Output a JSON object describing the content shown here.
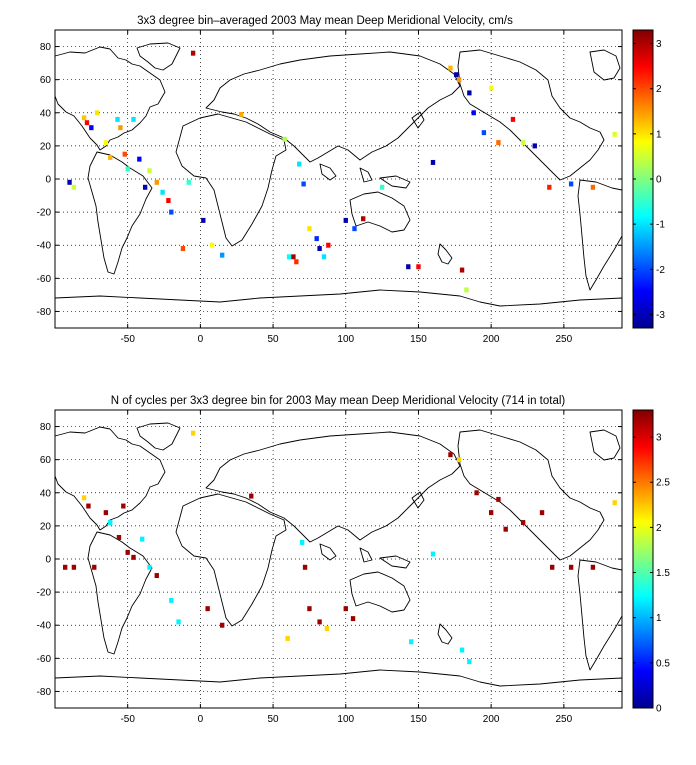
{
  "chart_data": [
    {
      "type": "heatmap",
      "title": "3x3 degree bin–averaged 2003 May mean Deep Meridional Velocity, cm/s",
      "xlim": [
        -100,
        290
      ],
      "ylim": [
        -90,
        90
      ],
      "xticks": [
        -50,
        0,
        50,
        100,
        150,
        200,
        250
      ],
      "yticks": [
        80,
        60,
        40,
        20,
        0,
        -20,
        -40,
        -60,
        -80
      ],
      "grid": "dotted",
      "colormap": "jet",
      "colorbar": {
        "clim": [
          -3.3,
          3.3
        ],
        "ticks": [
          3,
          2,
          1,
          0,
          -1,
          -2,
          -3
        ]
      },
      "points": [
        {
          "x": -90,
          "y": -2,
          "v": -3
        },
        {
          "x": -87,
          "y": -5,
          "v": 0.5
        },
        {
          "x": -80,
          "y": 37,
          "v": 1.2
        },
        {
          "x": -78,
          "y": 34,
          "v": 2.5
        },
        {
          "x": -75,
          "y": 31,
          "v": -2.5
        },
        {
          "x": -71,
          "y": 40,
          "v": 1
        },
        {
          "x": -65,
          "y": 22,
          "v": 0.8
        },
        {
          "x": -62,
          "y": 13,
          "v": 1.3
        },
        {
          "x": -57,
          "y": 36,
          "v": -1
        },
        {
          "x": -55,
          "y": 31,
          "v": 1.5
        },
        {
          "x": -52,
          "y": 15,
          "v": 2
        },
        {
          "x": -50,
          "y": 6,
          "v": -0.5
        },
        {
          "x": -46,
          "y": 36,
          "v": -1
        },
        {
          "x": -42,
          "y": 12,
          "v": -2.5
        },
        {
          "x": -38,
          "y": -5,
          "v": -3
        },
        {
          "x": -35,
          "y": 5,
          "v": 0.5
        },
        {
          "x": -30,
          "y": -2,
          "v": 1.5
        },
        {
          "x": -26,
          "y": -8,
          "v": -1
        },
        {
          "x": -22,
          "y": -13,
          "v": 2.5
        },
        {
          "x": -20,
          "y": -20,
          "v": -2
        },
        {
          "x": -12,
          "y": -42,
          "v": 2
        },
        {
          "x": -8,
          "y": -2,
          "v": -0.5
        },
        {
          "x": -5,
          "y": 76,
          "v": 3
        },
        {
          "x": 2,
          "y": -25,
          "v": -3
        },
        {
          "x": 8,
          "y": -40,
          "v": 0.8
        },
        {
          "x": 15,
          "y": -46,
          "v": -1.5
        },
        {
          "x": 28,
          "y": 39,
          "v": 1.4
        },
        {
          "x": 58,
          "y": 24,
          "v": 0.3
        },
        {
          "x": 61,
          "y": -47,
          "v": -0.8
        },
        {
          "x": 64,
          "y": -47,
          "v": 3
        },
        {
          "x": 66,
          "y": -50,
          "v": 2.2
        },
        {
          "x": 68,
          "y": 9,
          "v": -1
        },
        {
          "x": 71,
          "y": -3,
          "v": -2
        },
        {
          "x": 75,
          "y": -30,
          "v": 1
        },
        {
          "x": 80,
          "y": -36,
          "v": -2.2
        },
        {
          "x": 82,
          "y": -42,
          "v": -3
        },
        {
          "x": 85,
          "y": -47,
          "v": -1
        },
        {
          "x": 88,
          "y": -40,
          "v": 2.5
        },
        {
          "x": 100,
          "y": -25,
          "v": -3
        },
        {
          "x": 106,
          "y": -30,
          "v": -2
        },
        {
          "x": 112,
          "y": -24,
          "v": 3
        },
        {
          "x": 125,
          "y": -5,
          "v": -0.5
        },
        {
          "x": 143,
          "y": -53,
          "v": -3
        },
        {
          "x": 150,
          "y": -53,
          "v": 2.5
        },
        {
          "x": 160,
          "y": 10,
          "v": -3
        },
        {
          "x": 172,
          "y": 67,
          "v": 1.3
        },
        {
          "x": 176,
          "y": 63,
          "v": -3
        },
        {
          "x": 178,
          "y": 60,
          "v": 1.5
        },
        {
          "x": 180,
          "y": -55,
          "v": 3
        },
        {
          "x": 183,
          "y": -67,
          "v": 0.4
        },
        {
          "x": 185,
          "y": 52,
          "v": -3
        },
        {
          "x": 188,
          "y": 40,
          "v": -2.5
        },
        {
          "x": 195,
          "y": 28,
          "v": -2
        },
        {
          "x": 200,
          "y": 55,
          "v": 0.8
        },
        {
          "x": 205,
          "y": 22,
          "v": 1.8
        },
        {
          "x": 215,
          "y": 36,
          "v": 2.5
        },
        {
          "x": 222,
          "y": 22,
          "v": 0.5
        },
        {
          "x": 230,
          "y": 20,
          "v": -3
        },
        {
          "x": 240,
          "y": -5,
          "v": 2.3
        },
        {
          "x": 255,
          "y": -3,
          "v": -2
        },
        {
          "x": 270,
          "y": -5,
          "v": 1.8
        },
        {
          "x": 285,
          "y": 27,
          "v": 0.6
        }
      ]
    },
    {
      "type": "heatmap",
      "title": "N of cycles per 3x3 degree bin for 2003 May mean Deep Meridional Velocity (714 in total)",
      "xlim": [
        -100,
        290
      ],
      "ylim": [
        -90,
        90
      ],
      "xticks": [
        -50,
        0,
        50,
        100,
        150,
        200,
        250
      ],
      "yticks": [
        80,
        60,
        40,
        20,
        0,
        -20,
        -40,
        -60,
        -80
      ],
      "grid": "dotted",
      "colormap": "jet",
      "colorbar": {
        "clim": [
          0,
          3.3
        ],
        "ticks": [
          3,
          2.5,
          2,
          1.5,
          1,
          0.5,
          0
        ]
      },
      "points": [
        {
          "x": -93,
          "y": -5,
          "v": 3.2
        },
        {
          "x": -87,
          "y": -5,
          "v": 3.2
        },
        {
          "x": -80,
          "y": 37,
          "v": 2.2
        },
        {
          "x": -77,
          "y": 32,
          "v": 3.2
        },
        {
          "x": -73,
          "y": -5,
          "v": 3.2
        },
        {
          "x": -65,
          "y": 28,
          "v": 3.2
        },
        {
          "x": -62,
          "y": 22,
          "v": 1.2
        },
        {
          "x": -56,
          "y": 13,
          "v": 3.2
        },
        {
          "x": -53,
          "y": 32,
          "v": 3.2
        },
        {
          "x": -50,
          "y": 4,
          "v": 3.2
        },
        {
          "x": -46,
          "y": 1,
          "v": 3.2
        },
        {
          "x": -40,
          "y": 12,
          "v": 1.2
        },
        {
          "x": -35,
          "y": -5,
          "v": 1.2
        },
        {
          "x": -30,
          "y": -10,
          "v": 3.2
        },
        {
          "x": -20,
          "y": -25,
          "v": 1.2
        },
        {
          "x": -15,
          "y": -38,
          "v": 1.2
        },
        {
          "x": -5,
          "y": 76,
          "v": 2.2
        },
        {
          "x": 5,
          "y": -30,
          "v": 3.2
        },
        {
          "x": 15,
          "y": -40,
          "v": 3.2
        },
        {
          "x": 35,
          "y": 38,
          "v": 3.2
        },
        {
          "x": 60,
          "y": -48,
          "v": 2.2
        },
        {
          "x": 70,
          "y": 10,
          "v": 1.2
        },
        {
          "x": 72,
          "y": -5,
          "v": 3.2
        },
        {
          "x": 75,
          "y": -30,
          "v": 3.2
        },
        {
          "x": 82,
          "y": -38,
          "v": 3.2
        },
        {
          "x": 87,
          "y": -42,
          "v": 2.2
        },
        {
          "x": 100,
          "y": -30,
          "v": 3.2
        },
        {
          "x": 105,
          "y": -36,
          "v": 3.2
        },
        {
          "x": 145,
          "y": -50,
          "v": 1.2
        },
        {
          "x": 160,
          "y": 3,
          "v": 1.2
        },
        {
          "x": 172,
          "y": 63,
          "v": 3.2
        },
        {
          "x": 178,
          "y": 60,
          "v": 2.2
        },
        {
          "x": 180,
          "y": -55,
          "v": 1.2
        },
        {
          "x": 185,
          "y": -62,
          "v": 1.2
        },
        {
          "x": 190,
          "y": 40,
          "v": 3.2
        },
        {
          "x": 200,
          "y": 28,
          "v": 3.2
        },
        {
          "x": 205,
          "y": 36,
          "v": 3.2
        },
        {
          "x": 210,
          "y": 18,
          "v": 3.2
        },
        {
          "x": 222,
          "y": 22,
          "v": 3.2
        },
        {
          "x": 235,
          "y": 28,
          "v": 3.2
        },
        {
          "x": 242,
          "y": -5,
          "v": 3.2
        },
        {
          "x": 255,
          "y": -5,
          "v": 3.2
        },
        {
          "x": 270,
          "y": -5,
          "v": 3.2
        },
        {
          "x": 285,
          "y": 34,
          "v": 2.2
        }
      ]
    }
  ]
}
